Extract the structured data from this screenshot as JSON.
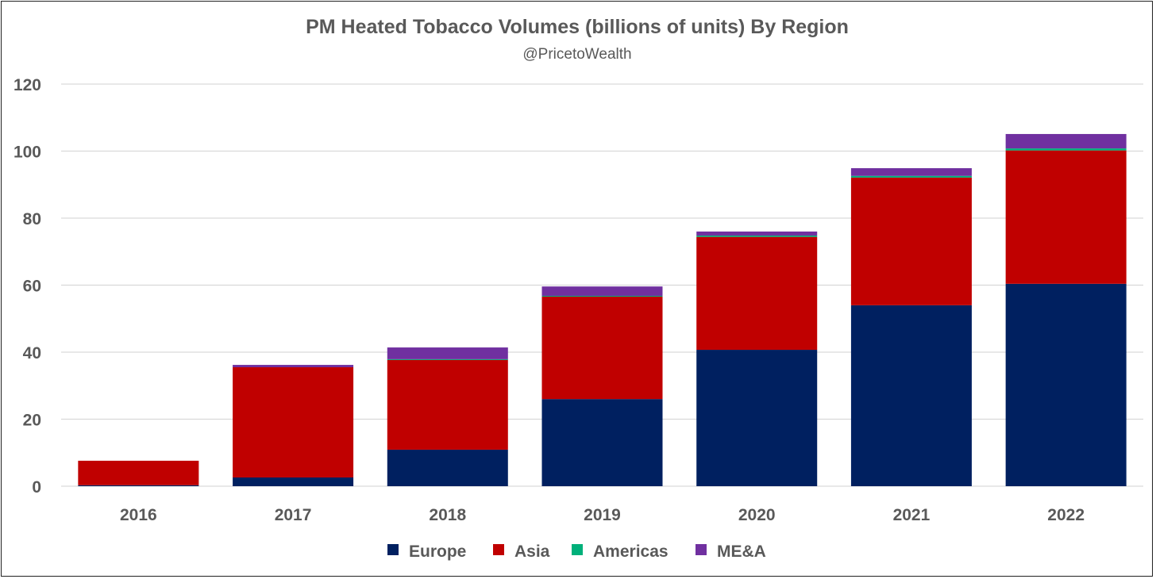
{
  "chart_data": {
    "type": "bar",
    "stacked": true,
    "title": "PM Heated Tobacco Volumes (billions of units) By Region",
    "subtitle": "@PricetoWealth",
    "xlabel": "",
    "ylabel": "",
    "ylim": [
      0,
      120
    ],
    "yticks": [
      0,
      20,
      40,
      60,
      80,
      100,
      120
    ],
    "grid": true,
    "legend_position": "bottom",
    "categories": [
      "2016",
      "2017",
      "2018",
      "2019",
      "2020",
      "2021",
      "2022"
    ],
    "series": [
      {
        "name": "Europe",
        "color": "#002060",
        "values": [
          0.3,
          2.6,
          10.9,
          26.0,
          40.7,
          54.0,
          60.4
        ]
      },
      {
        "name": "Asia",
        "color": "#C00000",
        "values": [
          7.3,
          32.9,
          26.8,
          30.6,
          33.7,
          38.1,
          39.8
        ]
      },
      {
        "name": "Americas",
        "color": "#00B07A",
        "values": [
          0.0,
          0.0,
          0.2,
          0.2,
          0.4,
          0.5,
          0.6
        ]
      },
      {
        "name": "ME&A",
        "color": "#7030A0",
        "values": [
          0.0,
          0.7,
          3.5,
          2.8,
          1.2,
          2.3,
          4.3
        ]
      }
    ]
  }
}
